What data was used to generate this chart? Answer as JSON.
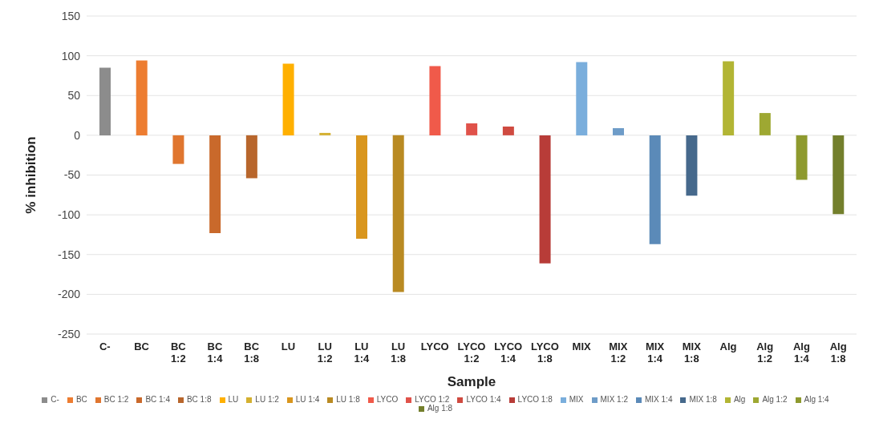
{
  "chart_data": {
    "type": "bar",
    "xlabel": "Sample",
    "ylabel": "% inhibition",
    "categories": [
      "C-",
      "BC",
      "BC 1:2",
      "BC 1:4",
      "BC 1:8",
      "LU",
      "LU 1:2",
      "LU 1:4",
      "LU 1:8",
      "LYCO",
      "LYCO 1:2",
      "LYCO 1:4",
      "LYCO 1:8",
      "MIX",
      "MIX 1:2",
      "MIX 1:4",
      "MIX 1:8",
      "Alg",
      "Alg 1:2",
      "Alg 1:4",
      "Alg 1:8"
    ],
    "series": [
      {
        "name": "C-",
        "color": "#8c8c8c",
        "values": [
          85,
          null,
          null,
          null,
          null,
          null,
          null,
          null,
          null,
          null,
          null,
          null,
          null,
          null,
          null,
          null,
          null,
          null,
          null,
          null,
          null
        ]
      },
      {
        "name": "BC",
        "color": "#ed7d31",
        "values": [
          null,
          94,
          null,
          null,
          null,
          null,
          null,
          null,
          null,
          null,
          null,
          null,
          null,
          null,
          null,
          null,
          null,
          null,
          null,
          null,
          null
        ]
      },
      {
        "name": "BC 1:2",
        "color": "#e0762f",
        "values": [
          null,
          null,
          -36,
          null,
          null,
          null,
          null,
          null,
          null,
          null,
          null,
          null,
          null,
          null,
          null,
          null,
          null,
          null,
          null,
          null,
          null
        ]
      },
      {
        "name": "BC 1:4",
        "color": "#c9692b",
        "values": [
          null,
          null,
          null,
          -123,
          null,
          null,
          null,
          null,
          null,
          null,
          null,
          null,
          null,
          null,
          null,
          null,
          null,
          null,
          null,
          null,
          null
        ]
      },
      {
        "name": "BC 1:8",
        "color": "#b8662c",
        "values": [
          null,
          null,
          null,
          null,
          -54,
          null,
          null,
          null,
          null,
          null,
          null,
          null,
          null,
          null,
          null,
          null,
          null,
          null,
          null,
          null,
          null
        ]
      },
      {
        "name": "LU",
        "color": "#ffb000",
        "values": [
          null,
          null,
          null,
          null,
          null,
          90,
          null,
          null,
          null,
          null,
          null,
          null,
          null,
          null,
          null,
          null,
          null,
          null,
          null,
          null,
          null
        ]
      },
      {
        "name": "LU 1:2",
        "color": "#d4b030",
        "values": [
          null,
          null,
          null,
          null,
          null,
          null,
          3,
          null,
          null,
          null,
          null,
          null,
          null,
          null,
          null,
          null,
          null,
          null,
          null,
          null,
          null
        ]
      },
      {
        "name": "LU 1:4",
        "color": "#d9961e",
        "values": [
          null,
          null,
          null,
          null,
          null,
          null,
          null,
          -130,
          null,
          null,
          null,
          null,
          null,
          null,
          null,
          null,
          null,
          null,
          null,
          null,
          null
        ]
      },
      {
        "name": "LU 1:8",
        "color": "#b98a22",
        "values": [
          null,
          null,
          null,
          null,
          null,
          null,
          null,
          null,
          -197,
          null,
          null,
          null,
          null,
          null,
          null,
          null,
          null,
          null,
          null,
          null,
          null
        ]
      },
      {
        "name": "LYCO",
        "color": "#f05a4a",
        "values": [
          null,
          null,
          null,
          null,
          null,
          null,
          null,
          null,
          null,
          87,
          null,
          null,
          null,
          null,
          null,
          null,
          null,
          null,
          null,
          null,
          null
        ]
      },
      {
        "name": "LYCO 1:2",
        "color": "#e0524a",
        "values": [
          null,
          null,
          null,
          null,
          null,
          null,
          null,
          null,
          null,
          null,
          15,
          null,
          null,
          null,
          null,
          null,
          null,
          null,
          null,
          null,
          null
        ]
      },
      {
        "name": "LYCO 1:4",
        "color": "#cf4a40",
        "values": [
          null,
          null,
          null,
          null,
          null,
          null,
          null,
          null,
          null,
          null,
          null,
          11,
          null,
          null,
          null,
          null,
          null,
          null,
          null,
          null,
          null
        ]
      },
      {
        "name": "LYCO 1:8",
        "color": "#b83c38",
        "values": [
          null,
          null,
          null,
          null,
          null,
          null,
          null,
          null,
          null,
          null,
          null,
          null,
          -161,
          null,
          null,
          null,
          null,
          null,
          null,
          null,
          null
        ]
      },
      {
        "name": "MIX",
        "color": "#7aaedc",
        "values": [
          null,
          null,
          null,
          null,
          null,
          null,
          null,
          null,
          null,
          null,
          null,
          null,
          null,
          92,
          null,
          null,
          null,
          null,
          null,
          null,
          null
        ]
      },
      {
        "name": "MIX 1:2",
        "color": "#6e9cc8",
        "values": [
          null,
          null,
          null,
          null,
          null,
          null,
          null,
          null,
          null,
          null,
          null,
          null,
          null,
          null,
          9,
          null,
          null,
          null,
          null,
          null,
          null
        ]
      },
      {
        "name": "MIX 1:4",
        "color": "#5b8ab8",
        "values": [
          null,
          null,
          null,
          null,
          null,
          null,
          null,
          null,
          null,
          null,
          null,
          null,
          null,
          null,
          null,
          -137,
          null,
          null,
          null,
          null,
          null
        ]
      },
      {
        "name": "MIX 1:8",
        "color": "#46698c",
        "values": [
          null,
          null,
          null,
          null,
          null,
          null,
          null,
          null,
          null,
          null,
          null,
          null,
          null,
          null,
          null,
          null,
          -76,
          null,
          null,
          null,
          null
        ]
      },
      {
        "name": "Alg",
        "color": "#b2b534",
        "values": [
          null,
          null,
          null,
          null,
          null,
          null,
          null,
          null,
          null,
          null,
          null,
          null,
          null,
          null,
          null,
          null,
          null,
          93,
          null,
          null,
          null
        ]
      },
      {
        "name": "Alg 1:2",
        "color": "#9ea832",
        "values": [
          null,
          null,
          null,
          null,
          null,
          null,
          null,
          null,
          null,
          null,
          null,
          null,
          null,
          null,
          null,
          null,
          null,
          null,
          28,
          null,
          null
        ]
      },
      {
        "name": "Alg 1:4",
        "color": "#8e9a2e",
        "values": [
          null,
          null,
          null,
          null,
          null,
          null,
          null,
          null,
          null,
          null,
          null,
          null,
          null,
          null,
          null,
          null,
          null,
          null,
          null,
          -56,
          null
        ]
      },
      {
        "name": "Alg 1:8",
        "color": "#737f2c",
        "values": [
          null,
          null,
          null,
          null,
          null,
          null,
          null,
          null,
          null,
          null,
          null,
          null,
          null,
          null,
          null,
          null,
          null,
          null,
          null,
          null,
          -99
        ]
      }
    ],
    "ylim": [
      -250,
      150
    ],
    "yticks": [
      -250,
      -200,
      -150,
      -100,
      -50,
      0,
      50,
      100,
      150
    ],
    "grid": "y",
    "legend": "bottom"
  }
}
